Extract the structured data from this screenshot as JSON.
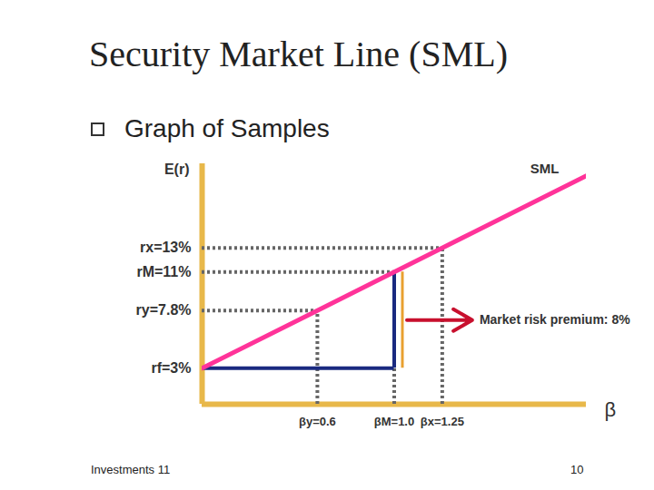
{
  "chart_data": {
    "type": "line",
    "title": "Security Market Line (SML)",
    "subtitle": "Graph of Samples",
    "xlabel": "β",
    "ylabel": "E(r)",
    "xlim": [
      0,
      2
    ],
    "ylim": [
      0,
      20
    ],
    "xticks": [
      {
        "value": 0.6,
        "label": "βy=0.6"
      },
      {
        "value": 1,
        "label": "βM=1.0"
      },
      {
        "value": 1.25,
        "label": "βx=1.25"
      }
    ],
    "yticks": [
      {
        "value": 13,
        "label": "rx=13%"
      },
      {
        "value": 11,
        "label": "rM=11%"
      },
      {
        "value": 7.8,
        "label": "ry=7.8%"
      },
      {
        "value": 3,
        "label": "rf=3%"
      }
    ],
    "series": [
      {
        "name": "SML",
        "color": "#ff3399",
        "x": [
          0,
          0.6,
          1,
          1.25,
          2
        ],
        "values": [
          3,
          7.8,
          11,
          13,
          19
        ]
      }
    ],
    "guides": {
      "x": [
        0.6,
        1,
        1.25
      ],
      "values": [
        7.8,
        11,
        13
      ],
      "line_style": "dotted"
    },
    "risk_premium": {
      "text": "Market risk premium: 8%",
      "x": 1,
      "from": 3,
      "to": 11,
      "color": "#1a2a80"
    },
    "grid": false,
    "footer": "Investments 11",
    "page_number": 10
  }
}
